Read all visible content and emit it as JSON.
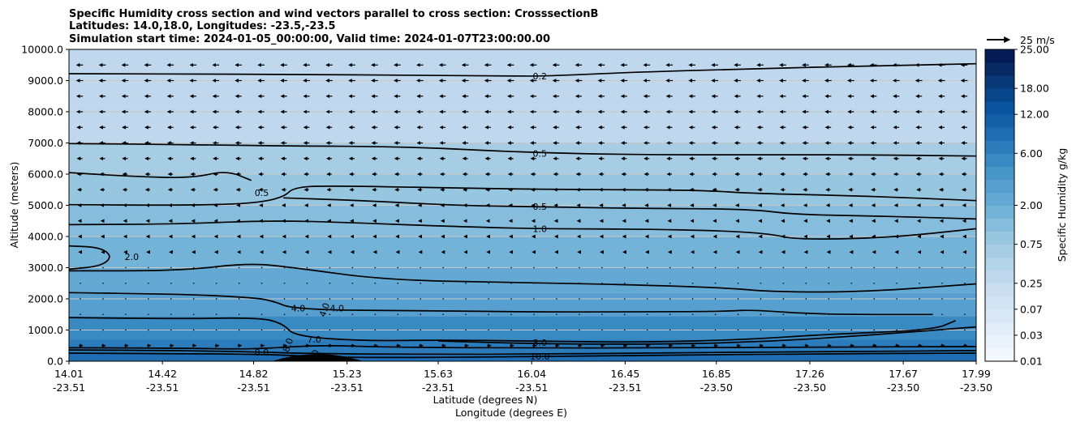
{
  "chart_data": {
    "type": "contourf",
    "title_lines": [
      "Specific Humidity cross section and wind vectors parallel to cross section: CrosssectionB",
      "Latitudes: 14.0,18.0, Longitudes: -23.5,-23.5",
      "Simulation start time: 2024-01-05_00:00:00, Valid time: 2024-01-07T23:00:00.00"
    ],
    "ylabel": "Altitude (meters)",
    "xlabel_lat": "Latitude (degrees N)",
    "xlabel_lon": "Longitude (degrees E)",
    "ylim": [
      0,
      10000
    ],
    "y_ticks": [
      "0.0",
      "1000.0",
      "2000.0",
      "3000.0",
      "4000.0",
      "5000.0",
      "6000.0",
      "7000.0",
      "8000.0",
      "9000.0",
      "10000.0"
    ],
    "x_range": [
      14.01,
      17.99
    ],
    "x_ticks": [
      {
        "lat": "14.01",
        "lon": "-23.51"
      },
      {
        "lat": "14.42",
        "lon": "-23.51"
      },
      {
        "lat": "14.82",
        "lon": "-23.51"
      },
      {
        "lat": "15.23",
        "lon": "-23.51"
      },
      {
        "lat": "15.63",
        "lon": "-23.51"
      },
      {
        "lat": "16.04",
        "lon": "-23.51"
      },
      {
        "lat": "16.45",
        "lon": "-23.51"
      },
      {
        "lat": "16.85",
        "lon": "-23.50"
      },
      {
        "lat": "17.26",
        "lon": "-23.50"
      },
      {
        "lat": "17.67",
        "lon": "-23.50"
      },
      {
        "lat": "17.99",
        "lon": "-23.50"
      }
    ],
    "colorbar": {
      "label": "Specific Humidity g/kg",
      "levels": [
        0.01,
        0.02,
        0.03,
        0.05,
        0.07,
        0.1,
        0.25,
        0.4,
        0.5,
        0.75,
        1.0,
        1.5,
        2.0,
        3.0,
        4.0,
        5.0,
        6.0,
        8.0,
        10.0,
        12.0,
        15.0,
        18.0,
        20.0,
        22.0,
        25.0
      ],
      "tick_labels": [
        "0.01",
        "0.03",
        "0.07",
        "0.25",
        "0.75",
        "2.00",
        "6.00",
        "12.00",
        "18.00",
        "25.00"
      ]
    },
    "quiver_key": {
      "label": "25 m/s",
      "speed": 25
    },
    "humidity_bands": [
      {
        "bottom": 0,
        "top": 250,
        "q": 9.0
      },
      {
        "bottom": 250,
        "top": 700,
        "q": 6.5
      },
      {
        "bottom": 700,
        "top": 1450,
        "q": 5.0
      },
      {
        "bottom": 1450,
        "top": 2200,
        "q": 3.6
      },
      {
        "bottom": 2200,
        "top": 3000,
        "q": 2.6
      },
      {
        "bottom": 3000,
        "top": 4000,
        "q": 1.9
      },
      {
        "bottom": 4000,
        "top": 5000,
        "q": 1.1
      },
      {
        "bottom": 5000,
        "top": 6000,
        "q": 0.75
      },
      {
        "bottom": 6000,
        "top": 7000,
        "q": 0.55
      },
      {
        "bottom": 7000,
        "top": 8200,
        "q": 0.35
      },
      {
        "bottom": 8200,
        "top": 10000,
        "q": 0.25
      }
    ],
    "contours": [
      {
        "level": "0.2",
        "points": [
          [
            14.01,
            9220
          ],
          [
            14.5,
            9210
          ],
          [
            15.0,
            9200
          ],
          [
            15.5,
            9170
          ],
          [
            15.9,
            9150
          ],
          [
            16.1,
            9140
          ],
          [
            16.45,
            9260
          ],
          [
            17.0,
            9380
          ],
          [
            17.6,
            9480
          ],
          [
            17.99,
            9540
          ]
        ],
        "labels": [
          {
            "x": 16.04,
            "y": 9140
          }
        ]
      },
      {
        "level": "0.5",
        "points": [
          [
            14.01,
            6980
          ],
          [
            14.5,
            6950
          ],
          [
            15.0,
            6900
          ],
          [
            15.5,
            6880
          ],
          [
            16.0,
            6700
          ],
          [
            16.5,
            6620
          ],
          [
            17.0,
            6620
          ],
          [
            17.5,
            6620
          ],
          [
            17.99,
            6580
          ]
        ],
        "labels": [
          {
            "x": 16.04,
            "y": 6660
          }
        ]
      },
      {
        "level": "0.5",
        "points": [
          [
            14.01,
            6050
          ],
          [
            14.3,
            5920
          ],
          [
            14.55,
            5870
          ],
          [
            14.7,
            6120
          ],
          [
            14.81,
            5800
          ]
        ],
        "labels": [
          {
            "x": 14.82,
            "y": 5400
          }
        ]
      },
      {
        "level": "0.5",
        "points": [
          [
            14.01,
            5020
          ],
          [
            14.5,
            5000
          ],
          [
            14.81,
            5050
          ],
          [
            14.95,
            5250
          ],
          [
            15.0,
            5600
          ],
          [
            15.2,
            5620
          ],
          [
            15.6,
            5570
          ],
          [
            16.0,
            5520
          ],
          [
            16.4,
            5500
          ],
          [
            16.8,
            5480
          ],
          [
            17.0,
            5380
          ],
          [
            17.5,
            5300
          ],
          [
            17.99,
            5150
          ]
        ],
        "labels": []
      },
      {
        "level": "0.5",
        "points": [
          [
            14.95,
            5240
          ],
          [
            15.3,
            5150
          ],
          [
            15.7,
            5000
          ],
          [
            16.0,
            4960
          ],
          [
            16.5,
            4900
          ],
          [
            17.0,
            4880
          ],
          [
            17.2,
            4700
          ],
          [
            17.6,
            4650
          ],
          [
            17.99,
            4560
          ]
        ],
        "labels": [
          {
            "x": 16.04,
            "y": 4960
          }
        ]
      },
      {
        "level": "1.0",
        "points": [
          [
            14.01,
            4380
          ],
          [
            14.5,
            4400
          ],
          [
            14.9,
            4520
          ],
          [
            15.3,
            4430
          ],
          [
            15.7,
            4320
          ],
          [
            16.04,
            4250
          ],
          [
            16.5,
            4240
          ],
          [
            16.9,
            4180
          ],
          [
            17.1,
            4070
          ],
          [
            17.2,
            3900
          ],
          [
            17.6,
            3950
          ],
          [
            17.99,
            4250
          ]
        ],
        "labels": [
          {
            "x": 16.04,
            "y": 4250
          }
        ]
      },
      {
        "level": "2.0",
        "points": [
          [
            14.01,
            3700
          ],
          [
            14.15,
            3650
          ],
          [
            14.2,
            3350
          ],
          [
            14.15,
            3050
          ],
          [
            14.01,
            2950
          ]
        ],
        "labels": [
          {
            "x": 14.25,
            "y": 3350
          }
        ]
      },
      {
        "level": "2.0",
        "points": [
          [
            14.01,
            2900
          ],
          [
            14.5,
            2900
          ],
          [
            14.8,
            3150
          ],
          [
            15.0,
            3000
          ],
          [
            15.4,
            2600
          ],
          [
            16.0,
            2520
          ],
          [
            16.5,
            2450
          ],
          [
            16.9,
            2350
          ],
          [
            17.1,
            2220
          ],
          [
            17.5,
            2220
          ],
          [
            17.99,
            2480
          ]
        ],
        "labels": []
      },
      {
        "level": "4.0",
        "points": [
          [
            14.01,
            2200
          ],
          [
            14.5,
            2150
          ],
          [
            14.8,
            2050
          ],
          [
            14.9,
            1950
          ],
          [
            15.0,
            1650
          ],
          [
            15.6,
            1620
          ],
          [
            16.04,
            1580
          ],
          [
            16.5,
            1580
          ],
          [
            16.9,
            1600
          ],
          [
            17.0,
            1650
          ],
          [
            17.3,
            1500
          ],
          [
            17.8,
            1500
          ]
        ],
        "labels": [
          {
            "x": 14.98,
            "y": 1700
          },
          {
            "x": 15.15,
            "y": 1700
          }
        ]
      },
      {
        "level": "7.0",
        "points": [
          [
            14.01,
            1400
          ],
          [
            14.5,
            1360
          ],
          [
            14.85,
            1400
          ],
          [
            14.95,
            1200
          ],
          [
            15.0,
            800
          ],
          [
            15.3,
            650
          ],
          [
            15.63,
            680
          ],
          [
            16.04,
            650
          ],
          [
            16.5,
            600
          ],
          [
            17.0,
            700
          ],
          [
            17.3,
            850
          ],
          [
            17.8,
            1000
          ],
          [
            17.9,
            1300
          ]
        ],
        "labels": [
          {
            "x": 15.05,
            "y": 700
          }
        ]
      },
      {
        "level": "8.0",
        "points": [
          [
            14.01,
            430
          ],
          [
            14.5,
            420
          ],
          [
            14.82,
            380
          ],
          [
            15.1,
            520
          ],
          [
            15.4,
            450
          ],
          [
            16.04,
            420
          ],
          [
            16.6,
            430
          ],
          [
            17.2,
            450
          ],
          [
            17.99,
            470
          ]
        ],
        "labels": [
          {
            "x": 14.82,
            "y": 280
          }
        ]
      },
      {
        "level": "9.0",
        "points": [
          [
            14.01,
            360
          ],
          [
            14.5,
            340
          ],
          [
            14.82,
            300
          ],
          [
            15.1,
            240
          ],
          [
            15.63,
            220
          ],
          [
            16.04,
            230
          ],
          [
            16.5,
            260
          ],
          [
            17.2,
            300
          ],
          [
            17.99,
            340
          ]
        ],
        "labels": []
      },
      {
        "level": "10.0",
        "points": [
          [
            14.01,
            260
          ],
          [
            14.82,
            230
          ],
          [
            15.0,
            180
          ],
          [
            15.2,
            120
          ],
          [
            15.63,
            120
          ],
          [
            16.04,
            150
          ],
          [
            16.6,
            190
          ],
          [
            17.3,
            240
          ],
          [
            17.99,
            260
          ]
        ],
        "labels": [
          {
            "x": 16.04,
            "y": 150
          }
        ]
      },
      {
        "level": "3.0",
        "points": [
          [
            15.63,
            650
          ],
          [
            16.04,
            560
          ],
          [
            16.5,
            540
          ],
          [
            17.0,
            600
          ],
          [
            17.5,
            820
          ],
          [
            17.99,
            1100
          ]
        ],
        "labels": [
          {
            "x": 16.04,
            "y": 600
          }
        ]
      }
    ],
    "extra_contour_labels": [
      {
        "text": "10.0",
        "x": 15.08,
        "y": 60
      },
      {
        "text": "8.0",
        "x": 14.97,
        "y": 520
      },
      {
        "text": "4.0",
        "x": 15.13,
        "y": 1650
      }
    ],
    "wind_rows_m": [
      9500,
      9000,
      8500,
      8000,
      7500,
      7000,
      6500,
      6000,
      5500,
      5000,
      4500,
      4000,
      3500,
      3000,
      2500,
      2000,
      1500,
      1000,
      500
    ],
    "wind_u_by_row_ms": [
      -6.5,
      -6.5,
      -6.0,
      -6.0,
      -5.5,
      -5.5,
      -5.0,
      -4.5,
      -4.0,
      -3.0,
      -2.5,
      -2.0,
      -1.5,
      -1.0,
      -0.6,
      -0.3,
      -0.2,
      1.0,
      3.5
    ],
    "wind_columns": 40,
    "dark_terrain": {
      "x_start": 14.9,
      "x_end": 15.3,
      "peak_m": 200
    }
  }
}
